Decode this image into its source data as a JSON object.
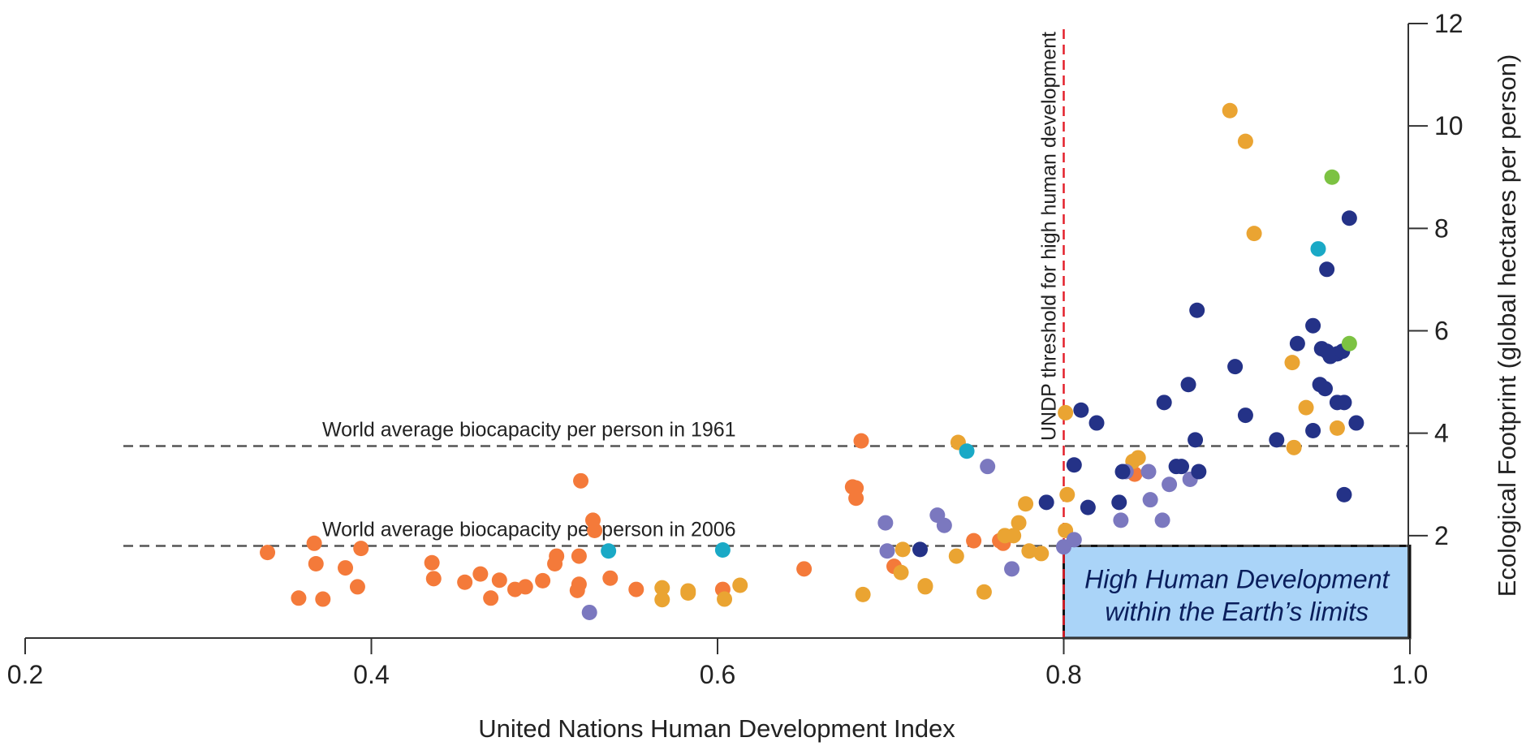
{
  "chart_data": {
    "type": "scatter",
    "xlabel": "United Nations Human Development Index",
    "ylabel": "Ecological Footprint (global hectares per person)",
    "xlim": [
      0.2,
      1.0
    ],
    "ylim": [
      0,
      12
    ],
    "x_ticks": [
      "0.2",
      "0.4",
      "0.6",
      "0.8",
      "1.0"
    ],
    "y_ticks": [
      "2",
      "4",
      "6",
      "8",
      "10",
      "12"
    ],
    "grid": false,
    "colors": {
      "orange": "#f47a3a",
      "gold": "#eaa432",
      "lavender": "#7b78bf",
      "navy": "#243287",
      "teal": "#1aa9c6",
      "green": "#7cc242",
      "threshold": "#e4202b",
      "reference": "#555555",
      "box_fill": "#aad4f8"
    },
    "reference_lines": [
      {
        "label": "World average biocapacity per person in 1961",
        "y": 3.75
      },
      {
        "label": "World average biocapacity per person in 2006",
        "y": 1.8
      }
    ],
    "threshold": {
      "label": "UNDP threshold for high human development",
      "x": 0.8
    },
    "highlight_box": {
      "line1": "High Human Development",
      "line2": "within the Earth’s limits",
      "x_range": [
        0.8,
        1.0
      ],
      "y_range": [
        0,
        1.8
      ]
    },
    "series": [
      {
        "color_key": "orange",
        "points": [
          [
            0.34,
            1.67
          ],
          [
            0.358,
            0.78
          ],
          [
            0.372,
            0.76
          ],
          [
            0.367,
            1.85
          ],
          [
            0.368,
            1.45
          ],
          [
            0.385,
            1.37
          ],
          [
            0.392,
            1.0
          ],
          [
            0.394,
            1.75
          ],
          [
            0.435,
            1.47
          ],
          [
            0.436,
            1.16
          ],
          [
            0.454,
            1.09
          ],
          [
            0.463,
            1.25
          ],
          [
            0.469,
            0.78
          ],
          [
            0.474,
            1.13
          ],
          [
            0.483,
            0.95
          ],
          [
            0.489,
            1.0
          ],
          [
            0.499,
            1.12
          ],
          [
            0.506,
            1.45
          ],
          [
            0.507,
            1.6
          ],
          [
            0.519,
            0.93
          ],
          [
            0.52,
            1.05
          ],
          [
            0.52,
            1.6
          ],
          [
            0.521,
            3.07
          ],
          [
            0.528,
            2.3
          ],
          [
            0.529,
            2.1
          ],
          [
            0.538,
            1.17
          ],
          [
            0.553,
            0.95
          ],
          [
            0.603,
            0.95
          ],
          [
            0.65,
            1.35
          ],
          [
            0.678,
            2.95
          ],
          [
            0.68,
            2.93
          ],
          [
            0.68,
            2.73
          ],
          [
            0.683,
            3.85
          ],
          [
            0.702,
            1.4
          ],
          [
            0.748,
            1.9
          ],
          [
            0.763,
            1.9
          ],
          [
            0.765,
            1.85
          ],
          [
            0.841,
            3.2
          ]
        ]
      },
      {
        "color_key": "gold",
        "points": [
          [
            0.568,
            0.98
          ],
          [
            0.568,
            0.75
          ],
          [
            0.583,
            0.92
          ],
          [
            0.583,
            0.88
          ],
          [
            0.604,
            0.76
          ],
          [
            0.613,
            1.03
          ],
          [
            0.684,
            0.85
          ],
          [
            0.706,
            1.28
          ],
          [
            0.707,
            1.73
          ],
          [
            0.72,
            1.02
          ],
          [
            0.72,
            1.0
          ],
          [
            0.738,
            1.6
          ],
          [
            0.739,
            3.82
          ],
          [
            0.754,
            0.9
          ],
          [
            0.766,
            2.0
          ],
          [
            0.771,
            2.0
          ],
          [
            0.774,
            2.25
          ],
          [
            0.778,
            2.62
          ],
          [
            0.78,
            1.7
          ],
          [
            0.787,
            1.65
          ],
          [
            0.801,
            4.4
          ],
          [
            0.801,
            2.1
          ],
          [
            0.802,
            2.8
          ],
          [
            0.84,
            3.45
          ],
          [
            0.843,
            3.52
          ],
          [
            0.896,
            10.3
          ],
          [
            0.905,
            9.7
          ],
          [
            0.91,
            7.9
          ],
          [
            0.932,
            5.38
          ],
          [
            0.933,
            3.72
          ],
          [
            0.94,
            4.5
          ],
          [
            0.958,
            4.1
          ]
        ]
      },
      {
        "color_key": "lavender",
        "points": [
          [
            0.526,
            0.5
          ],
          [
            0.697,
            2.25
          ],
          [
            0.698,
            1.7
          ],
          [
            0.727,
            2.4
          ],
          [
            0.731,
            2.2
          ],
          [
            0.756,
            3.35
          ],
          [
            0.77,
            1.35
          ],
          [
            0.8,
            1.78
          ],
          [
            0.806,
            1.92
          ],
          [
            0.833,
            2.3
          ],
          [
            0.836,
            3.25
          ],
          [
            0.849,
            3.25
          ],
          [
            0.85,
            2.7
          ],
          [
            0.857,
            2.3
          ],
          [
            0.861,
            3.0
          ],
          [
            0.873,
            3.1
          ]
        ]
      },
      {
        "color_key": "navy",
        "points": [
          [
            0.717,
            1.73
          ],
          [
            0.79,
            2.65
          ],
          [
            0.806,
            3.38
          ],
          [
            0.81,
            4.45
          ],
          [
            0.814,
            2.55
          ],
          [
            0.819,
            4.2
          ],
          [
            0.832,
            2.65
          ],
          [
            0.834,
            3.25
          ],
          [
            0.858,
            4.6
          ],
          [
            0.865,
            3.35
          ],
          [
            0.868,
            3.35
          ],
          [
            0.872,
            4.95
          ],
          [
            0.876,
            3.87
          ],
          [
            0.877,
            6.4
          ],
          [
            0.878,
            3.25
          ],
          [
            0.899,
            5.3
          ],
          [
            0.905,
            4.35
          ],
          [
            0.923,
            3.87
          ],
          [
            0.935,
            5.75
          ],
          [
            0.944,
            6.1
          ],
          [
            0.944,
            4.05
          ],
          [
            0.948,
            4.95
          ],
          [
            0.949,
            5.65
          ],
          [
            0.951,
            4.87
          ],
          [
            0.952,
            5.6
          ],
          [
            0.952,
            7.2
          ],
          [
            0.954,
            5.5
          ],
          [
            0.958,
            5.55
          ],
          [
            0.958,
            4.6
          ],
          [
            0.961,
            5.6
          ],
          [
            0.962,
            4.6
          ],
          [
            0.962,
            2.8
          ],
          [
            0.965,
            8.2
          ],
          [
            0.969,
            4.2
          ]
        ]
      },
      {
        "color_key": "teal",
        "points": [
          [
            0.537,
            1.7
          ],
          [
            0.603,
            1.72
          ],
          [
            0.744,
            3.65
          ],
          [
            0.947,
            7.6
          ]
        ]
      },
      {
        "color_key": "green",
        "points": [
          [
            0.955,
            9.0
          ],
          [
            0.965,
            5.75
          ]
        ]
      }
    ]
  }
}
